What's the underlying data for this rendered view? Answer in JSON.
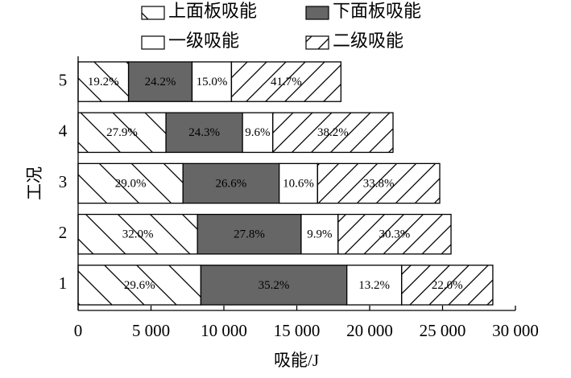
{
  "chart_data": {
    "type": "stacked-barh",
    "categories": [
      "1",
      "2",
      "3",
      "4",
      "5"
    ],
    "x_label": "吸能/J",
    "y_label": "工况",
    "series": [
      {
        "name": "上面板吸能",
        "color": "#ffffff",
        "hatch": "\\",
        "values": [
          8421,
          8186,
          7194,
          6027,
          3458
        ],
        "share_labels": [
          "29.6%",
          "32.0%",
          "29.0%",
          "27.9%",
          "19.2%"
        ]
      },
      {
        "name": "下面板吸能",
        "color": "#666666",
        "hatch": null,
        "values": [
          10014,
          7112,
          6599,
          5250,
          4359
        ],
        "share_labels": [
          "35.2%",
          "27.8%",
          "26.6%",
          "24.3%",
          "24.2%"
        ]
      },
      {
        "name": "一级吸能",
        "color": "#ffffff",
        "hatch": null,
        "values": [
          3755,
          2533,
          2630,
          2074,
          2702
        ],
        "share_labels": [
          "13.2%",
          "9.9%",
          "10.6%",
          "9.6%",
          "15.0%"
        ]
      },
      {
        "name": "二级吸能",
        "color": "#ffffff",
        "hatch": "/",
        "values": [
          6259,
          7751,
          8385,
          8252,
          7511
        ],
        "share_labels": [
          "22.0%",
          "30.3%",
          "33.8%",
          "38.2%",
          "41.7%"
        ]
      }
    ],
    "xlim": [
      0,
      30000
    ],
    "xticks": [
      0,
      {
        "value": 5000,
        "label": "5 000"
      },
      {
        "value": 10000,
        "label": "10 000"
      },
      {
        "value": 15000,
        "label": "15 000"
      },
      {
        "value": 20000,
        "label": "20 000"
      },
      {
        "value": 25000,
        "label": "25 000"
      },
      {
        "value": 30000,
        "label": "30 000"
      }
    ],
    "legend": "top"
  }
}
